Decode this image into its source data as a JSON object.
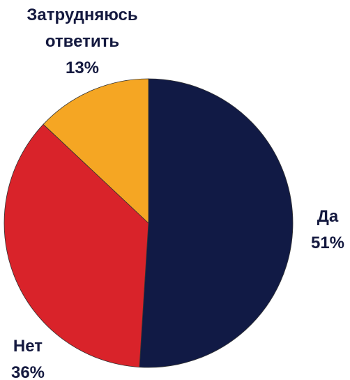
{
  "chart_data": {
    "type": "pie",
    "categories": [
      "Да",
      "Нет",
      "Затрудняюсь ответить"
    ],
    "values": [
      51,
      36,
      13
    ],
    "value_labels": [
      "51%",
      "36%",
      "13%"
    ],
    "colors": [
      "#111a45",
      "#d9232a",
      "#f5a623"
    ]
  }
}
